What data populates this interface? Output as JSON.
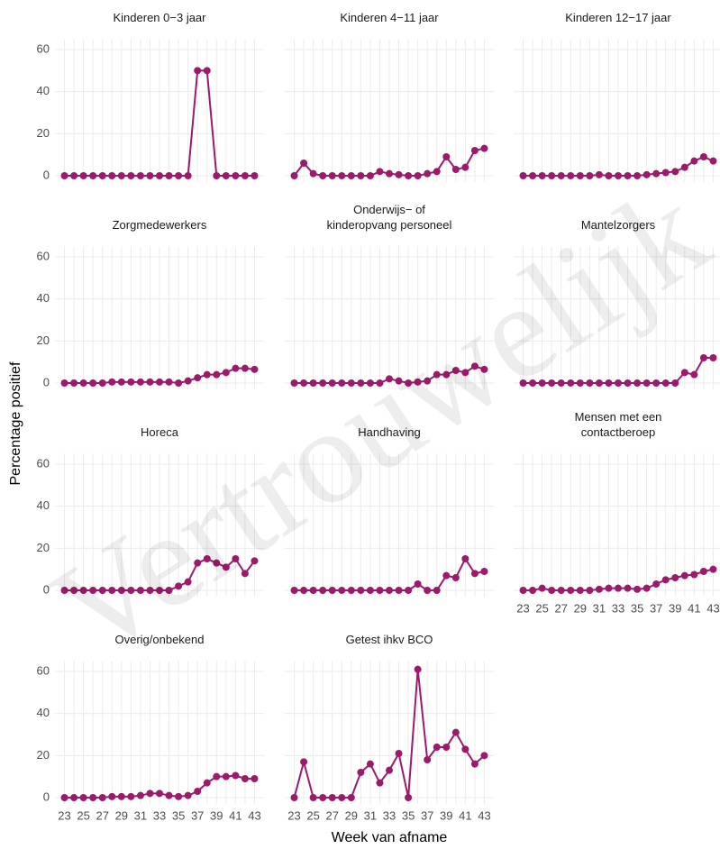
{
  "watermark": "Vertrouwelijk",
  "chart_data": {
    "type": "line",
    "x_label": "Week van afname",
    "y_label": "Percentage positief",
    "color": "#9c1a6b",
    "grid": true,
    "x": [
      23,
      24,
      25,
      26,
      27,
      28,
      29,
      30,
      31,
      32,
      33,
      34,
      35,
      36,
      37,
      38,
      39,
      40,
      41,
      42,
      43
    ],
    "xlim": [
      22,
      44
    ],
    "xticks": [
      23,
      25,
      27,
      29,
      31,
      33,
      35,
      37,
      39,
      41,
      43
    ],
    "ylim": [
      -3,
      65
    ],
    "yticks": [
      0,
      20,
      40,
      60
    ],
    "panels": [
      {
        "title": [
          "Kinderen 0−3 jaar"
        ],
        "values": [
          0,
          0,
          0,
          0,
          0,
          0,
          0,
          0,
          0,
          0,
          0,
          0,
          0,
          0,
          50,
          50,
          0,
          0,
          0,
          0,
          0
        ]
      },
      {
        "title": [
          "Kinderen 4−11 jaar"
        ],
        "values": [
          0,
          6,
          1,
          0,
          0,
          0,
          0,
          0,
          0,
          2,
          1,
          0.5,
          0,
          0,
          1,
          2,
          9,
          3,
          4,
          12,
          13
        ]
      },
      {
        "title": [
          "Kinderen 12−17 jaar"
        ],
        "values": [
          0,
          0,
          0,
          0,
          0,
          0,
          0,
          0,
          0.5,
          0,
          0,
          0,
          0,
          0.5,
          1,
          1.5,
          2,
          4,
          7,
          9,
          7
        ]
      },
      {
        "title": [
          "Zorgmedewerkers"
        ],
        "values": [
          0,
          0,
          0,
          0,
          0,
          0.5,
          0.5,
          0.5,
          0.5,
          0.5,
          0.5,
          0.5,
          0,
          1,
          2.5,
          4,
          4,
          5,
          7,
          7,
          6.5
        ]
      },
      {
        "title": [
          "Onderwijs− of",
          "kinderopvang personeel"
        ],
        "values": [
          0,
          0,
          0,
          0,
          0,
          0,
          0,
          0,
          0,
          0,
          2,
          1,
          0,
          0.5,
          1,
          4,
          4,
          6,
          5,
          8,
          6.5
        ]
      },
      {
        "title": [
          "Mantelzorgers"
        ],
        "values": [
          0,
          0,
          0,
          0,
          0,
          0,
          0,
          0,
          0,
          0,
          0,
          0,
          0,
          0,
          0,
          0,
          0,
          5,
          4,
          12,
          12
        ]
      },
      {
        "title": [
          "Horeca"
        ],
        "values": [
          0,
          0,
          0,
          0,
          0,
          0,
          0,
          0,
          0,
          0,
          0,
          0,
          2,
          4,
          13,
          15,
          13,
          11,
          15,
          8,
          14
        ]
      },
      {
        "title": [
          "Handhaving"
        ],
        "values": [
          0,
          0,
          0,
          0,
          0,
          0,
          0,
          0,
          0,
          0,
          0,
          0,
          0,
          3,
          0,
          0,
          7,
          6,
          15,
          8,
          9
        ]
      },
      {
        "title": [
          "Mensen met een",
          "contactberoep"
        ],
        "values": [
          0,
          0,
          1,
          0,
          0,
          0,
          0,
          0,
          0.5,
          1,
          1,
          1,
          0.5,
          1,
          3,
          5,
          6,
          7,
          7.5,
          9,
          10
        ]
      },
      {
        "title": [
          "Overig/onbekend"
        ],
        "values": [
          0,
          0,
          0,
          0,
          0,
          0.5,
          0.5,
          0.5,
          1,
          2,
          2,
          1,
          0.5,
          1,
          3,
          7,
          10,
          10,
          10.5,
          9,
          9
        ]
      },
      {
        "title": [
          "Getest ihkv BCO"
        ],
        "values": [
          0,
          17,
          0,
          0,
          0,
          0,
          0,
          12,
          16,
          7,
          13,
          21,
          0,
          61,
          18,
          24,
          24,
          31,
          23,
          16,
          20
        ]
      }
    ]
  }
}
